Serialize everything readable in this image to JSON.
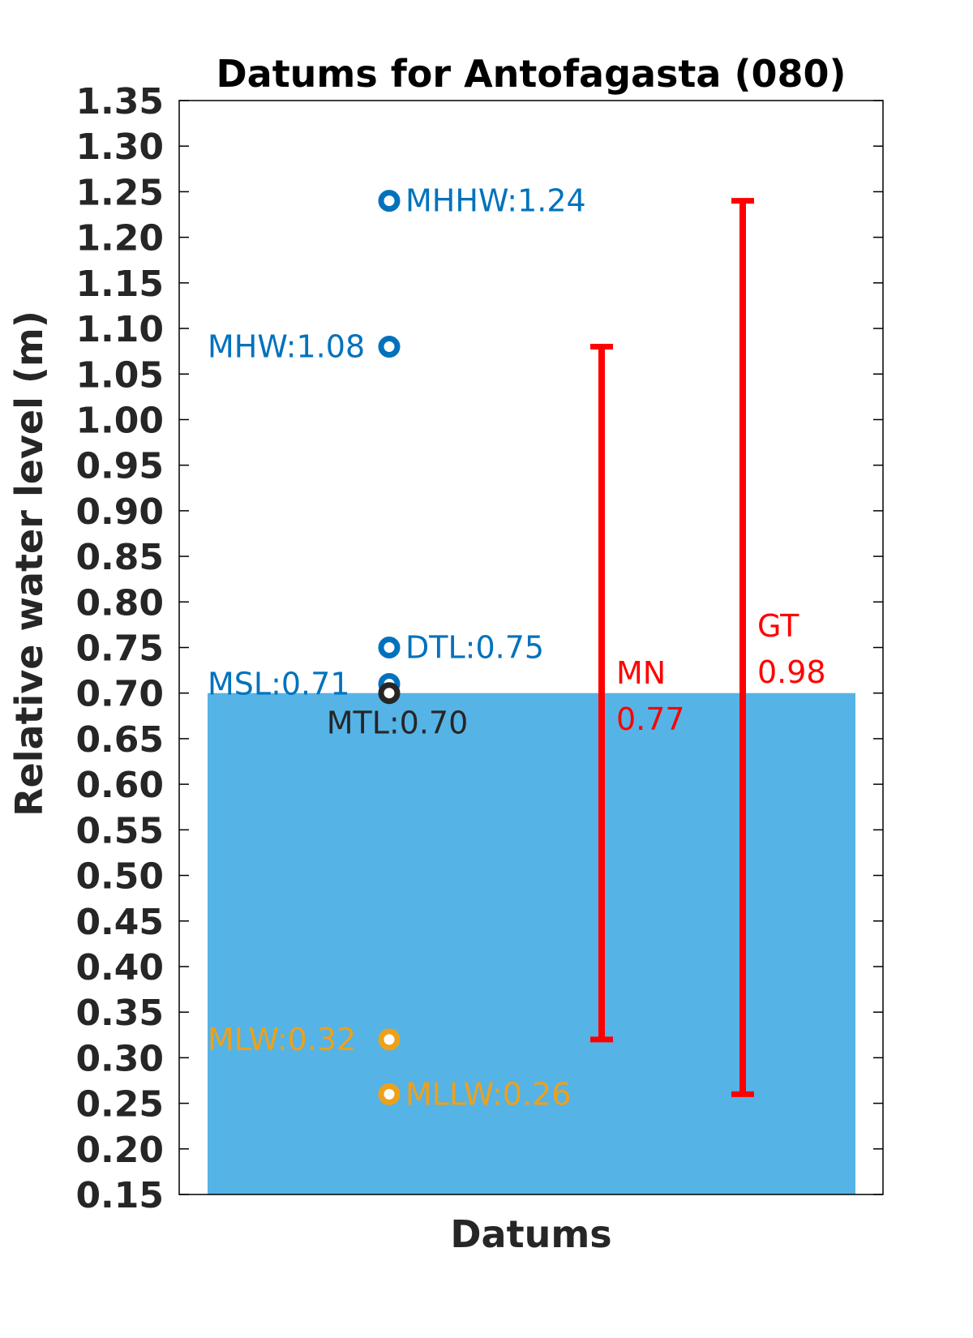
{
  "chart_data": {
    "type": "bar",
    "title": "Datums for Antofagasta (080)",
    "xlabel": "Datums",
    "ylabel": "Relative water level (m)",
    "ylim": [
      0.15,
      1.35
    ],
    "ytick_step": 0.05,
    "grid": false,
    "bar": {
      "category": "MTL",
      "value": 0.7,
      "color": "#56B3E6"
    },
    "datums": [
      {
        "name": "MHHW",
        "value": 1.24,
        "label": "MHHW:1.24",
        "color": "#0072BD",
        "label_side": "right"
      },
      {
        "name": "MHW",
        "value": 1.08,
        "label": "MHW:1.08",
        "color": "#0072BD",
        "label_side": "left"
      },
      {
        "name": "DTL",
        "value": 0.75,
        "label": "DTL:0.75",
        "color": "#0072BD",
        "label_side": "right"
      },
      {
        "name": "MSL",
        "value": 0.71,
        "label": "MSL:0.71",
        "color": "#0072BD",
        "label_side": "left"
      },
      {
        "name": "MTL",
        "value": 0.7,
        "label": "MTL:0.70",
        "color": "#262626",
        "label_side": "below"
      },
      {
        "name": "MLW",
        "value": 0.32,
        "label": "MLW:0.32",
        "color": "#EDA11A",
        "label_side": "left"
      },
      {
        "name": "MLLW",
        "value": 0.26,
        "label": "MLLW:0.26",
        "color": "#EDA11A",
        "label_side": "right"
      }
    ],
    "ranges": [
      {
        "name": "MN",
        "value_text": "0.77",
        "low": 0.32,
        "high": 1.08,
        "color": "#FF0000"
      },
      {
        "name": "GT",
        "value_text": "0.98",
        "low": 0.26,
        "high": 1.24,
        "color": "#FF0000"
      }
    ]
  }
}
